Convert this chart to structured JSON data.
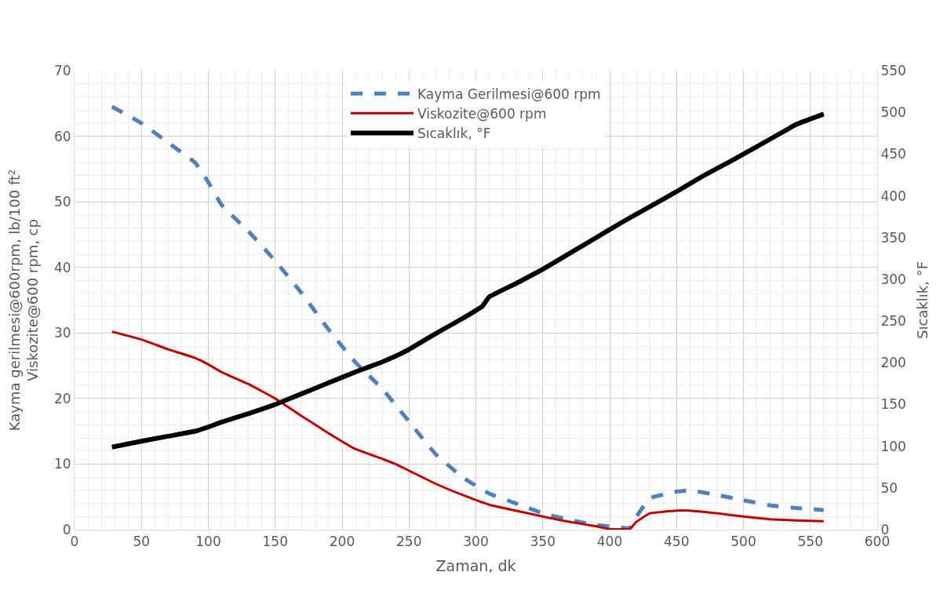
{
  "chart_data": {
    "type": "line",
    "xlabel": "Zaman, dk",
    "ylabel": "Kayma gerilmesi@600rpm, lb/100 ft²\nViskozite@600 rpm, cp",
    "y2label": "Sıcaklık, °F",
    "xlim": [
      0,
      600
    ],
    "xticks": [
      0,
      50,
      100,
      150,
      200,
      250,
      300,
      350,
      400,
      450,
      500,
      550,
      600
    ],
    "ylim": [
      0,
      70
    ],
    "yticks": [
      0,
      10,
      20,
      30,
      40,
      50,
      60,
      70
    ],
    "y2lim": [
      0,
      550
    ],
    "y2ticks": [
      0,
      50,
      100,
      150,
      200,
      250,
      300,
      350,
      400,
      450,
      500,
      550
    ],
    "grid": true,
    "legend": "top",
    "marker": "none",
    "series": [
      {
        "name": "Kayma Gerilmesi@600 rpm",
        "color": "#4f81bd",
        "line_style": "dashed",
        "x": [
          28,
          50,
          70,
          90,
          100,
          110,
          130,
          150,
          170,
          190,
          210,
          230,
          250,
          270,
          290,
          310,
          330,
          350,
          370,
          390,
          410,
          415,
          420,
          430,
          450,
          460,
          480,
          500,
          520,
          540,
          560
        ],
        "values": [
          64.5,
          62,
          59,
          56,
          53,
          49.5,
          45.5,
          41,
          36,
          30.5,
          25.5,
          21.5,
          16.5,
          11.5,
          8,
          5.5,
          4,
          2.5,
          1.5,
          0.7,
          0.3,
          0.2,
          2,
          4.8,
          5.8,
          6,
          5.3,
          4.5,
          3.7,
          3.3,
          3.0
        ]
      },
      {
        "name": "Viskozite@600 rpm",
        "color": "#c00000",
        "line_style": "solid",
        "x": [
          28,
          50,
          70,
          90,
          100,
          110,
          130,
          150,
          170,
          190,
          210,
          230,
          240,
          250,
          270,
          290,
          310,
          330,
          350,
          370,
          390,
          400,
          415,
          420,
          430,
          450,
          460,
          480,
          500,
          520,
          540,
          560
        ],
        "values": [
          30.2,
          29,
          27.5,
          26.2,
          25.2,
          24,
          22.2,
          20,
          17.3,
          14.7,
          12.3,
          10.8,
          10,
          9,
          7,
          5.3,
          3.8,
          2.9,
          2,
          1.2,
          0.5,
          0.1,
          0.1,
          1.2,
          2.5,
          2.9,
          2.9,
          2.5,
          2.0,
          1.6,
          1.4,
          1.3
        ]
      },
      {
        "name": "Sıcaklık, °F",
        "color": "#000000",
        "line_style": "solid",
        "axis": "y2",
        "x": [
          28,
          50,
          70,
          90,
          100,
          110,
          130,
          150,
          170,
          190,
          210,
          230,
          240,
          250,
          270,
          290,
          305,
          310,
          330,
          350,
          370,
          390,
          410,
          430,
          450,
          470,
          490,
          510,
          530,
          540,
          560
        ],
        "values": [
          99,
          106,
          112,
          118,
          123,
          129,
          139,
          150,
          163,
          176,
          189,
          201,
          208,
          216,
          235,
          253,
          268,
          279,
          295,
          312,
          331,
          350,
          369,
          387,
          405,
          424,
          441,
          459,
          477,
          486,
          498
        ]
      }
    ]
  }
}
